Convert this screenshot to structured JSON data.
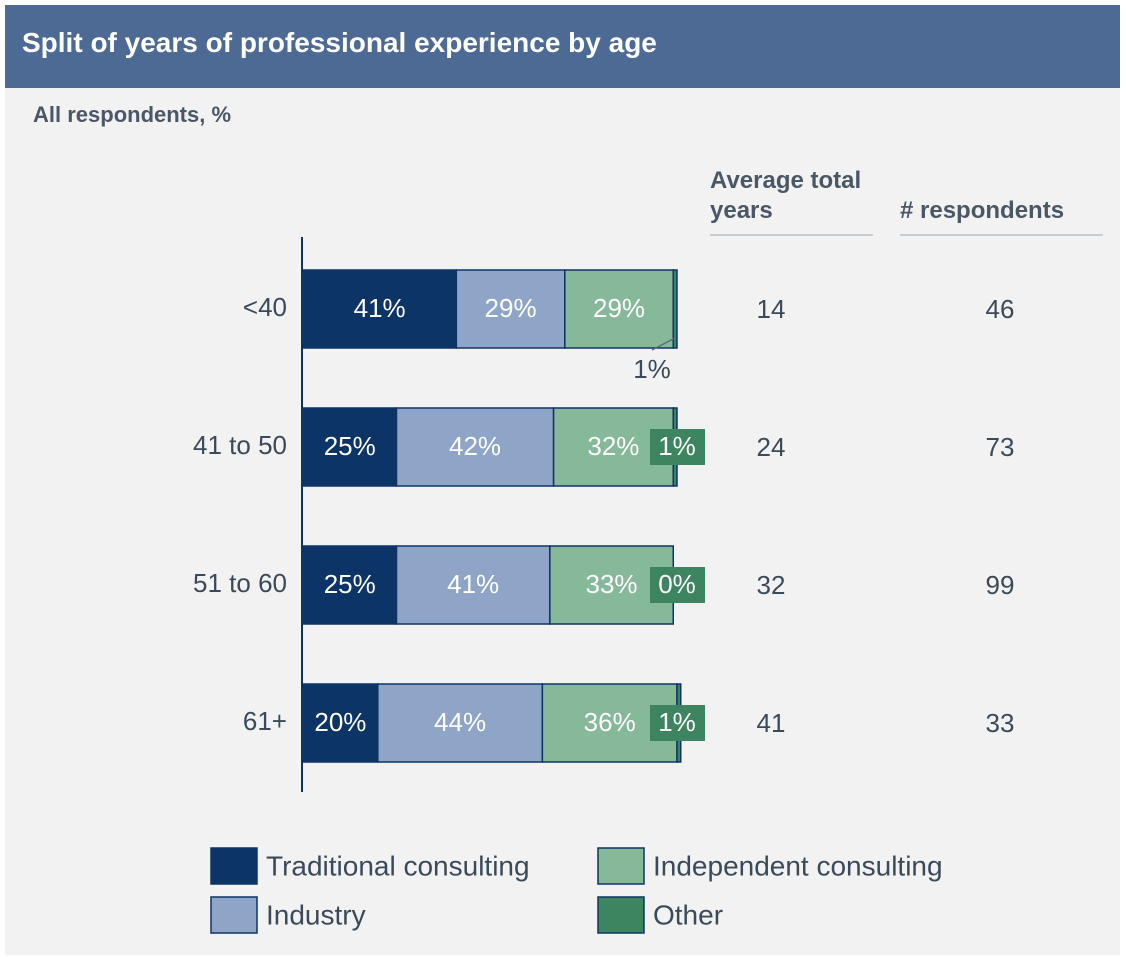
{
  "chart_data": {
    "type": "stacked_bar_horizontal",
    "title": "Split of years of professional experience by age",
    "subtitle": "All respondents, %",
    "categories": [
      "<40",
      "41 to 50",
      "51 to 60",
      "61+"
    ],
    "xlim": [
      0,
      100
    ],
    "series": [
      {
        "name": "Traditional consulting",
        "color": "#0d3466",
        "values": [
          41,
          25,
          25,
          20
        ],
        "value_labels": [
          "41%",
          "25%",
          "25%",
          "20%"
        ]
      },
      {
        "name": "Industry",
        "color": "#8fa5c8",
        "values": [
          29,
          42,
          41,
          44
        ],
        "value_labels": [
          "29%",
          "42%",
          "41%",
          "44%"
        ]
      },
      {
        "name": "Independent consulting",
        "color": "#86b89a",
        "values": [
          29,
          32,
          33,
          36
        ],
        "value_labels": [
          "29%",
          "32%",
          "33%",
          "36%"
        ]
      },
      {
        "name": "Other",
        "color": "#3d8560",
        "values": [
          1,
          1,
          0,
          1
        ],
        "value_labels": [
          "1%",
          "1%",
          "0%",
          "1%"
        ]
      }
    ],
    "side_columns": [
      {
        "header": "Average total years",
        "values": [
          14,
          24,
          32,
          41
        ]
      },
      {
        "header": "# respondents",
        "values": [
          46,
          73,
          99,
          33
        ]
      }
    ]
  }
}
